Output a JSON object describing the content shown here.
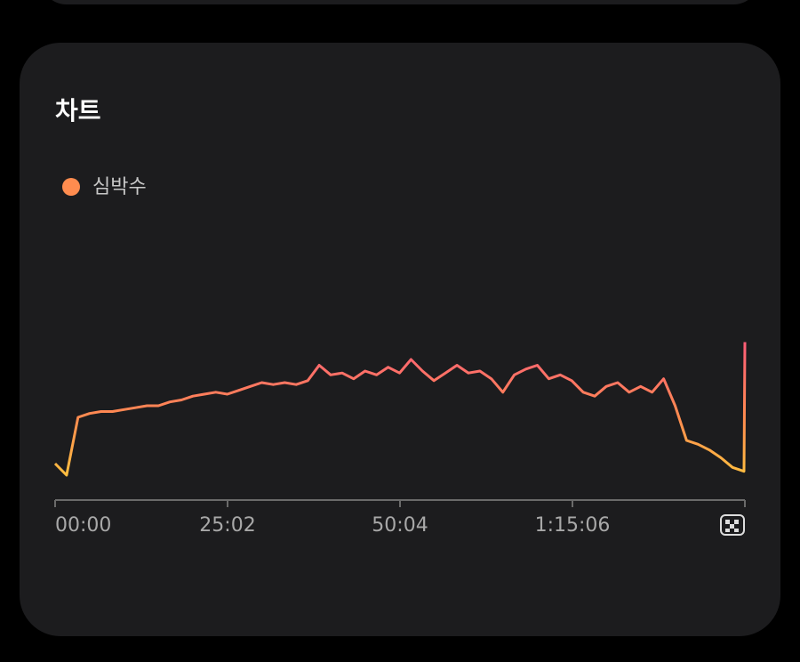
{
  "chart_data": {
    "type": "line",
    "title": "차트",
    "x": [
      0,
      100,
      200,
      300,
      400,
      500,
      600,
      700,
      800,
      900,
      1000,
      1100,
      1200,
      1300,
      1400,
      1500,
      1600,
      1700,
      1800,
      1900,
      2000,
      2100,
      2200,
      2300,
      2400,
      2500,
      2600,
      2700,
      2800,
      2900,
      3000,
      3100,
      3200,
      3300,
      3400,
      3500,
      3600,
      3700,
      3800,
      3900,
      4000,
      4100,
      4200,
      4300,
      4400,
      4500,
      4600,
      4700,
      4800,
      4900,
      5000,
      5100,
      5200,
      5300,
      5400,
      5500,
      5600,
      5700,
      5800,
      5900,
      6000,
      6008
    ],
    "series": [
      {
        "name": "심박수",
        "color": "#ff8c4f",
        "values": [
          78,
          72,
          102,
          104,
          105,
          105,
          106,
          107,
          108,
          108,
          110,
          111,
          113,
          114,
          115,
          114,
          116,
          118,
          120,
          119,
          120,
          119,
          121,
          129,
          124,
          125,
          122,
          126,
          124,
          128,
          125,
          132,
          126,
          121,
          125,
          129,
          125,
          126,
          122,
          115,
          124,
          127,
          129,
          122,
          124,
          121,
          115,
          113,
          118,
          120,
          115,
          118,
          115,
          122,
          108,
          90,
          88,
          85,
          81,
          76,
          74,
          141
        ]
      }
    ],
    "gradient": [
      "#ffd23a",
      "#ff8c4f",
      "#ff5a7a"
    ],
    "xlim": [
      0,
      6008
    ],
    "xticks": [
      {
        "value": 0,
        "label": "00:00"
      },
      {
        "value": 1502,
        "label": "25:02"
      },
      {
        "value": 3004,
        "label": "50:04"
      },
      {
        "value": 4506,
        "label": "1:15:06"
      }
    ],
    "ylim": [
      60,
      180
    ]
  }
}
